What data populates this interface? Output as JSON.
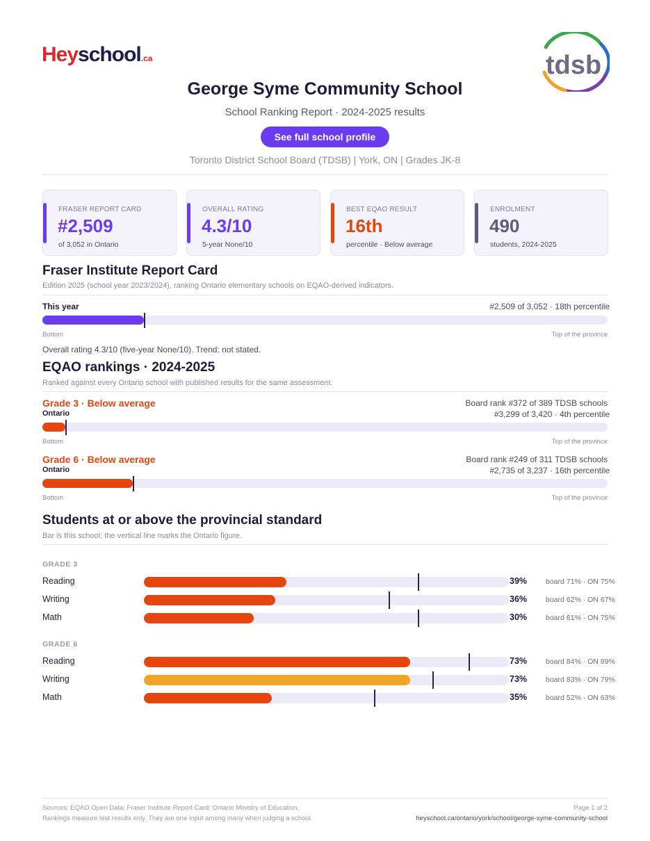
{
  "logo": {
    "hey": "Hey",
    "school": "school",
    "tld": ".ca",
    "board_logo": "tdsb"
  },
  "header": {
    "title": "George Syme Community School",
    "subtitle": "School Ranking Report  ·  2024-2025 results",
    "profile_button": "See full school profile",
    "meta": "Toronto District School Board (TDSB)  |  York, ON  |  Grades JK-8"
  },
  "cards": [
    {
      "label": "FRASER REPORT CARD",
      "value": "#2,509",
      "sub": "of 3,052 in Ontario",
      "color": "#6b3bf0"
    },
    {
      "label": "OVERALL RATING",
      "value": "4.3/10",
      "sub": "5-year None/10",
      "color": "#6b3bf0"
    },
    {
      "label": "BEST EQAO RESULT",
      "value": "16th",
      "sub": "percentile  ·  Below average",
      "color": "#e5450f"
    },
    {
      "label": "ENROLMENT",
      "value": "490",
      "sub": "students, 2024-2025",
      "color": "#5f5a7e"
    }
  ],
  "fraser": {
    "heading": "Fraser Institute Report Card",
    "note": "Edition 2025 (school year 2023/2024), ranking Ontario elementary schools on EQAO-derived indicators.",
    "row_label": "This year",
    "rank_text": "#2,509 of 3,052  ·  18th percentile",
    "percentile": 18,
    "axis_bottom": "Bottom",
    "axis_top": "Top of the province",
    "overall": "Overall rating 4.3/10 (five-year None/10). Trend: not stated."
  },
  "eqao": {
    "heading": "EQAO rankings  ·  2024-2025",
    "note": "Ranked against every Ontario school with published results for the same assessment.",
    "axis_bottom": "Bottom",
    "axis_top": "Top of the province",
    "rows": [
      {
        "grade": "Grade 3  ·  Below average",
        "scope": "Ontario",
        "board_rank": "Board rank #372 of 389 TDSB schools",
        "ontario_rank": "#3,299 of 3,420  ·  4th percentile",
        "percentile": 4
      },
      {
        "grade": "Grade 6  ·  Below average",
        "scope": "Ontario",
        "board_rank": "Board rank #249 of 311 TDSB schools",
        "ontario_rank": "#2,735 of 3,237  ·  16th percentile",
        "percentile": 16
      }
    ]
  },
  "standard": {
    "heading": "Students at or above the provincial standard",
    "note": "Bar is this school; the vertical line marks the Ontario figure.",
    "groups": [
      {
        "label": "GRADE 3",
        "rows": [
          {
            "subject": "Reading",
            "pct_text": "39%",
            "value": 39,
            "ontario": 75,
            "cmp": "board 71%  ·  ON 75%",
            "color": "#e5450f"
          },
          {
            "subject": "Writing",
            "pct_text": "36%",
            "value": 36,
            "ontario": 67,
            "cmp": "board 62%  ·  ON 67%",
            "color": "#e5450f"
          },
          {
            "subject": "Math",
            "pct_text": "30%",
            "value": 30,
            "ontario": 75,
            "cmp": "board 61%  ·  ON 75%",
            "color": "#e5450f"
          }
        ]
      },
      {
        "label": "GRADE 6",
        "rows": [
          {
            "subject": "Reading",
            "pct_text": "73%",
            "value": 73,
            "ontario": 89,
            "cmp": "board 84%  ·  ON 89%",
            "color": "#e5450f"
          },
          {
            "subject": "Writing",
            "pct_text": "73%",
            "value": 73,
            "ontario": 79,
            "cmp": "board 83%  ·  ON 79%",
            "color": "#f0a524"
          },
          {
            "subject": "Math",
            "pct_text": "35%",
            "value": 35,
            "ontario": 63,
            "cmp": "board 52%  ·  ON 63%",
            "color": "#e5450f"
          }
        ]
      }
    ]
  },
  "footer": {
    "sources": "Sources: EQAO Open Data; Fraser Institute Report Card; Ontario Ministry of Education.",
    "disclaimer": "Rankings measure test results only. They are one input among many when judging a school.",
    "page": "Page 1 of 2",
    "url": "heyschool.ca/ontario/york/school/george-syme-community-school"
  }
}
